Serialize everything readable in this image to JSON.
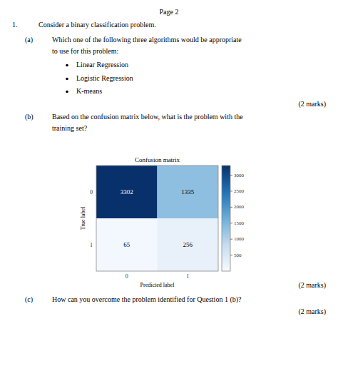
{
  "chart_data": {
    "type": "heatmap",
    "title": "Confusion matrix",
    "x_label": "Predicted label",
    "y_label": "True label",
    "categories": [
      "0",
      "1"
    ],
    "y_categories": [
      "0",
      "1"
    ],
    "values": [
      [
        3302,
        1335
      ],
      [
        65,
        256
      ]
    ],
    "data_labels": true,
    "color_range": [
      0,
      3302
    ],
    "color_ticks": [
      500,
      1000,
      1500,
      2000,
      2500,
      3000
    ],
    "annotations": [
      "Page 2",
      "1.",
      "Consider a binary classification problem.",
      "(a)",
      "Which one of the following three algorithms would be appropriate",
      "to use for this problem:",
      "Linear Regression",
      "Logistic Regression",
      "K-means",
      "(2 marks)",
      "(b)",
      "Based on the confusion matrix below, what is the problem with the",
      "training set?",
      "(2 marks)",
      "(c)",
      "How can you overcome the problem identified for Question 1 (b)?",
      "(2 marks)"
    ]
  }
}
